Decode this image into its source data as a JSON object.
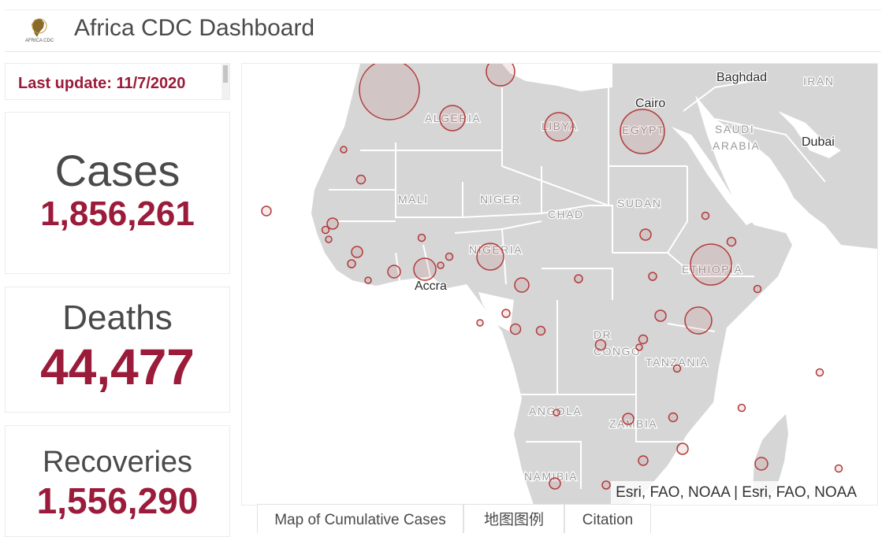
{
  "header": {
    "title": "Africa CDC Dashboard",
    "logo_text": "AFRICA CDC"
  },
  "update": {
    "text": "Last update: 11/7/2020"
  },
  "stats": {
    "cases": {
      "label": "Cases",
      "value": "1,856,261"
    },
    "deaths": {
      "label": "Deaths",
      "value": "44,477"
    },
    "recoveries": {
      "label": "Recoveries",
      "value": "1,556,290"
    }
  },
  "map": {
    "attribution": "Esri, FAO, NOAA | Esri, FAO, NOAA",
    "country_labels": [
      "ALGERIA",
      "LIBYA",
      "EGYPT",
      "MALI",
      "NIGER",
      "CHAD",
      "SUDAN",
      "NIGERIA",
      "ETHIOPIA",
      "DR",
      "CONGO",
      "TANZANIA",
      "ANGOLA",
      "ZAMBIA",
      "NAMIBIA",
      "SAUDI",
      "ARABIA",
      "IRAN"
    ],
    "city_labels": [
      "Baghdad",
      "Cairo",
      "Dubai",
      "Accra"
    ],
    "colors": {
      "land": "#d6d6d6",
      "water": "#ffffff",
      "border": "#ffffff",
      "bubble_stroke": "#b23a3a",
      "bubble_fill": "rgba(180,70,70,0.12)"
    }
  },
  "tabs": [
    "Map of Cumulative Cases",
    "地图图例",
    "Citation"
  ],
  "colors": {
    "accent": "#9b1b3a",
    "text": "#4a4a4a"
  }
}
